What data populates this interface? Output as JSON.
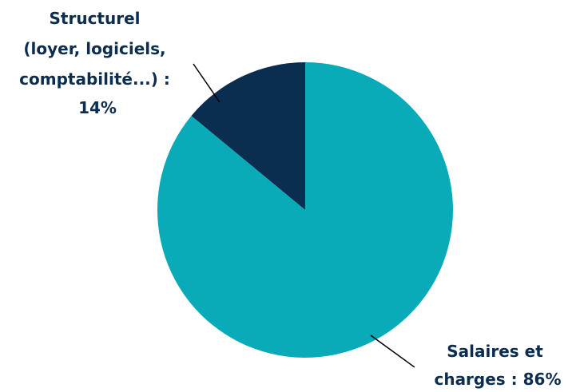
{
  "chart_data": {
    "type": "pie",
    "start_angle": "12 o'clock",
    "direction": "counter-clockwise",
    "slices": [
      {
        "id": "structurel",
        "value": 14,
        "color": "#0b2d4f",
        "label_lines": [
          "Structurel",
          "(loyer, logiciels,",
          "comptabilité...) :",
          "14%"
        ]
      },
      {
        "id": "salaires",
        "value": 86,
        "color": "#0aabb8",
        "label_lines": [
          "Salaires et",
          "charges : 86%"
        ]
      }
    ]
  }
}
